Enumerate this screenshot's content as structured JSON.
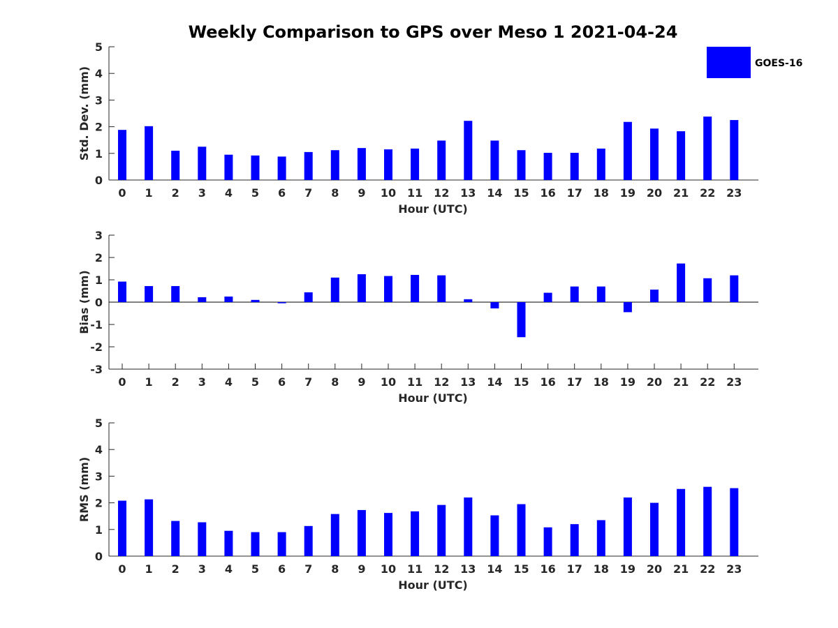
{
  "title": "Weekly Comparison to GPS over Meso 1 2021-04-24",
  "legend": {
    "label": "GOES-16",
    "color": "#0000ff"
  },
  "chart_data": [
    {
      "type": "bar",
      "title": "Weekly Comparison to GPS over Meso 1 2021-04-24",
      "xlabel": "Hour (UTC)",
      "ylabel": "Std. Dev. (mm)",
      "ylim": [
        0,
        5
      ],
      "yticks": [
        "0",
        "1",
        "2",
        "3",
        "4",
        "5"
      ],
      "categories": [
        "0",
        "1",
        "2",
        "3",
        "4",
        "5",
        "6",
        "7",
        "8",
        "9",
        "10",
        "11",
        "12",
        "13",
        "14",
        "15",
        "16",
        "17",
        "18",
        "19",
        "20",
        "21",
        "22",
        "23"
      ],
      "series": [
        {
          "name": "GOES-16",
          "values": [
            1.88,
            2.02,
            1.1,
            1.25,
            0.95,
            0.92,
            0.88,
            1.05,
            1.12,
            1.2,
            1.15,
            1.18,
            1.48,
            2.22,
            1.48,
            1.12,
            1.02,
            1.02,
            1.18,
            2.18,
            1.93,
            1.83,
            2.38,
            2.25
          ]
        }
      ]
    },
    {
      "type": "bar",
      "xlabel": "Hour (UTC)",
      "ylabel": "Bias (mm)",
      "ylim": [
        -3,
        3
      ],
      "yticks": [
        "-3",
        "-2",
        "-1",
        "0",
        "1",
        "2",
        "3"
      ],
      "categories": [
        "0",
        "1",
        "2",
        "3",
        "4",
        "5",
        "6",
        "7",
        "8",
        "9",
        "10",
        "11",
        "12",
        "13",
        "14",
        "15",
        "16",
        "17",
        "18",
        "19",
        "20",
        "21",
        "22",
        "23"
      ],
      "series": [
        {
          "name": "GOES-16",
          "values": [
            0.92,
            0.72,
            0.72,
            0.22,
            0.25,
            0.1,
            -0.05,
            0.44,
            1.1,
            1.25,
            1.17,
            1.22,
            1.2,
            0.13,
            -0.28,
            -1.57,
            0.42,
            0.7,
            0.7,
            -0.45,
            0.56,
            1.73,
            1.07,
            1.2
          ]
        }
      ]
    },
    {
      "type": "bar",
      "xlabel": "Hour (UTC)",
      "ylabel": "RMS (mm)",
      "ylim": [
        0,
        5
      ],
      "yticks": [
        "0",
        "1",
        "2",
        "3",
        "4",
        "5"
      ],
      "categories": [
        "0",
        "1",
        "2",
        "3",
        "4",
        "5",
        "6",
        "7",
        "8",
        "9",
        "10",
        "11",
        "12",
        "13",
        "14",
        "15",
        "16",
        "17",
        "18",
        "19",
        "20",
        "21",
        "22",
        "23"
      ],
      "series": [
        {
          "name": "GOES-16",
          "values": [
            2.08,
            2.13,
            1.32,
            1.27,
            0.95,
            0.9,
            0.9,
            1.13,
            1.58,
            1.73,
            1.62,
            1.68,
            1.92,
            2.2,
            1.53,
            1.95,
            1.08,
            1.2,
            1.35,
            2.2,
            2.0,
            2.52,
            2.6,
            2.55
          ]
        }
      ]
    }
  ]
}
